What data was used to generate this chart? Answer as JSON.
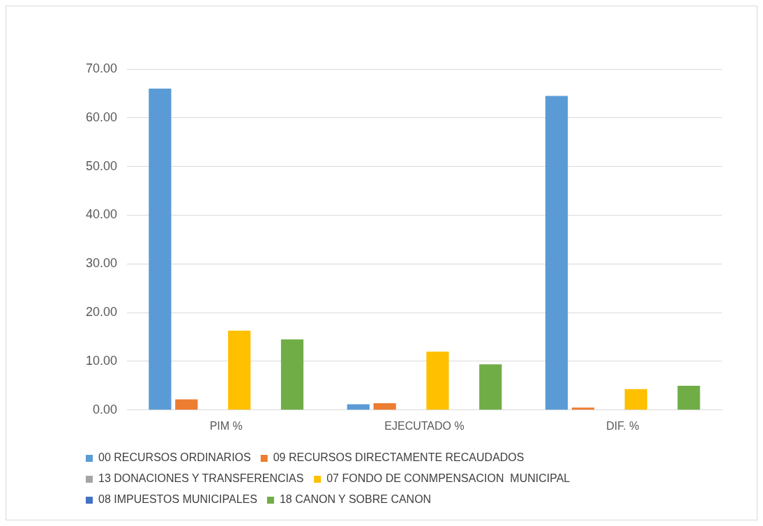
{
  "chart_data": {
    "type": "bar",
    "categories": [
      "PIM %",
      "EJECUTADO %",
      "DIF. %"
    ],
    "series": [
      {
        "name": "00 RECURSOS ORDINARIOS",
        "color": "#5b9bd5",
        "values": [
          66,
          1.2,
          64.5
        ]
      },
      {
        "name": "09 RECURSOS DIRECTAMENTE RECAUDADOS",
        "color": "#ed7d31",
        "values": [
          2.2,
          1.4,
          0.5
        ]
      },
      {
        "name": "13 DONACIONES Y TRANSFERENCIAS",
        "color": "#a5a5a5",
        "values": [
          0,
          0,
          0
        ]
      },
      {
        "name": "07 FONDO DE CONMPENSACION  MUNICIPAL",
        "color": "#ffc000",
        "values": [
          16.3,
          12,
          4.3
        ]
      },
      {
        "name": "08 IMPUESTOS MUNICIPALES",
        "color": "#4472c4",
        "values": [
          0,
          0,
          0
        ]
      },
      {
        "name": "18 CANON Y SOBRE CANON",
        "color": "#70ad47",
        "values": [
          14.5,
          9.4,
          5
        ]
      }
    ],
    "ylim": [
      0,
      70
    ],
    "yticks": [
      {
        "value": 0,
        "label": "0.00"
      },
      {
        "value": 10,
        "label": "10.00"
      },
      {
        "value": 20,
        "label": "20.00"
      },
      {
        "value": 30,
        "label": "30.00"
      },
      {
        "value": 40,
        "label": "40.00"
      },
      {
        "value": 50,
        "label": "50.00"
      },
      {
        "value": 60,
        "label": "60.00"
      },
      {
        "value": 70,
        "label": "70.00"
      }
    ],
    "grid": "y",
    "legend": "bottom"
  }
}
